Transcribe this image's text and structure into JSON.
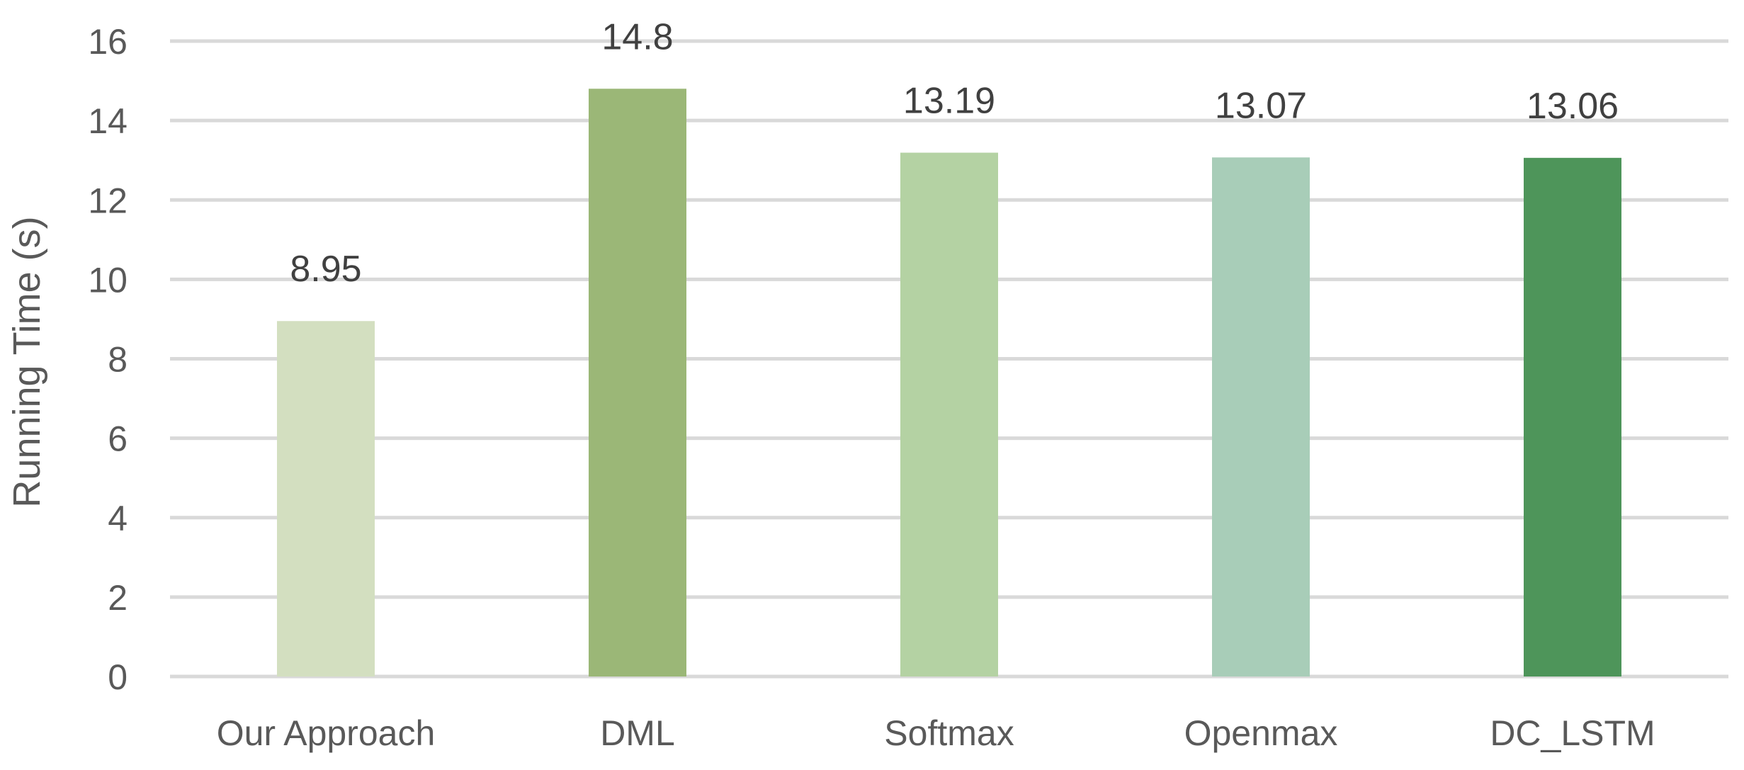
{
  "chart_data": {
    "type": "bar",
    "title": "",
    "xlabel": "",
    "ylabel": "Running Time (s)",
    "categories": [
      "Our Approach",
      "DML",
      "Softmax",
      "Openmax",
      "DC_LSTM"
    ],
    "values": [
      8.95,
      14.8,
      13.19,
      13.07,
      13.06
    ],
    "data_labels": [
      "8.95",
      "14.8",
      "13.19",
      "13.07",
      "13.06"
    ],
    "bar_colors": [
      "#d3dfc0",
      "#9bb777",
      "#b4d2a3",
      "#a8cdb8",
      "#4e955a"
    ],
    "ylim": [
      0,
      16
    ],
    "yticks": [
      "0",
      "2",
      "4",
      "6",
      "8",
      "10",
      "12",
      "14",
      "16"
    ],
    "grid": true,
    "gridline_color": "#d9d9d9",
    "legend": "none"
  }
}
